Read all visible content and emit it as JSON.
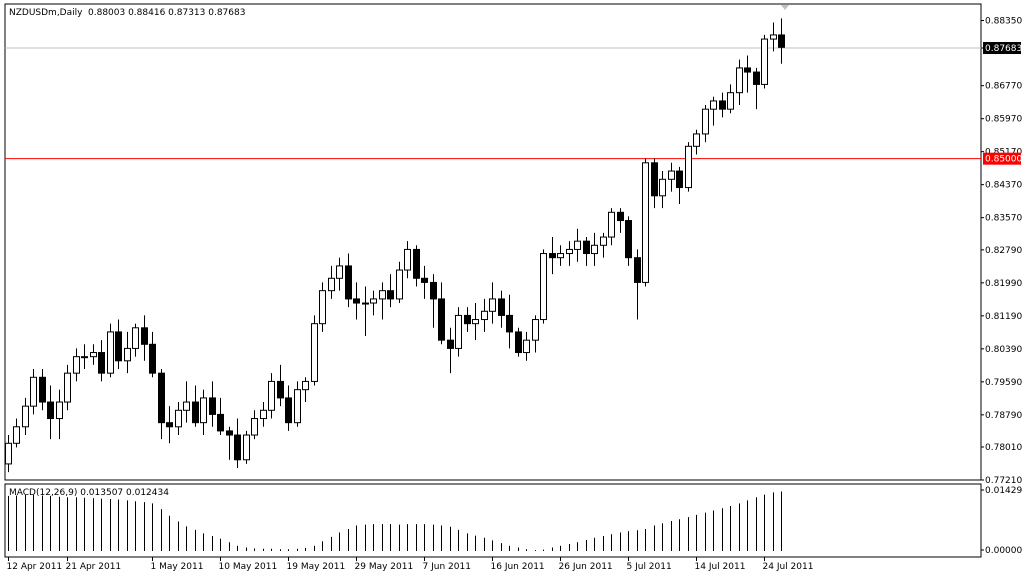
{
  "header": {
    "symbol": "NZDUSDm,Daily",
    "ohlc": "0.88003 0.88416 0.87313 0.87683"
  },
  "macd": {
    "label": "MACD(12,26,9) 0.013507 0.012434",
    "axis_top": "0.014299",
    "axis_bottom": "0.000000"
  },
  "colors": {
    "background": "#ffffff",
    "frame": "#000000",
    "candle_bull": "#ffffff",
    "candle_bear": "#000000",
    "level_line": "#ff0000",
    "current_line": "#c0c0c0"
  },
  "chart_data": {
    "type": "candlestick",
    "symbol": "NZDUSDm",
    "timeframe": "Daily",
    "ylim": [
      0.7721,
      0.8875
    ],
    "price_ticks": [
      "0.88350",
      "0.87683",
      "0.86770",
      "0.85970",
      "0.85170",
      "0.84370",
      "0.83570",
      "0.82790",
      "0.81990",
      "0.81190",
      "0.80390",
      "0.79590",
      "0.78790",
      "0.78010",
      "0.77210"
    ],
    "current_price": "0.87683",
    "level_line": {
      "value": 0.85,
      "label": "0.85000"
    },
    "x_labels": [
      "12 Apr 2011",
      "21 Apr 2011",
      "1 May 2011",
      "10 May 2011",
      "19 May 2011",
      "29 May 2011",
      "7 Jun 2011",
      "16 Jun 2011",
      "26 Jun 2011",
      "5 Jul 2011",
      "14 Jul 2011",
      "24 Jul 2011"
    ],
    "x_label_index": [
      0,
      7,
      17,
      25,
      33,
      41,
      49,
      57,
      65,
      73,
      81,
      89
    ],
    "candles": [
      [
        0.776,
        0.783,
        0.774,
        0.781
      ],
      [
        0.781,
        0.787,
        0.78,
        0.785
      ],
      [
        0.785,
        0.792,
        0.783,
        0.79
      ],
      [
        0.79,
        0.799,
        0.788,
        0.797
      ],
      [
        0.797,
        0.799,
        0.789,
        0.791
      ],
      [
        0.791,
        0.795,
        0.782,
        0.787
      ],
      [
        0.787,
        0.794,
        0.782,
        0.791
      ],
      [
        0.791,
        0.8,
        0.789,
        0.798
      ],
      [
        0.798,
        0.804,
        0.796,
        0.802
      ],
      [
        0.802,
        0.805,
        0.799,
        0.802
      ],
      [
        0.802,
        0.805,
        0.8,
        0.803
      ],
      [
        0.803,
        0.806,
        0.796,
        0.798
      ],
      [
        0.798,
        0.81,
        0.797,
        0.808
      ],
      [
        0.808,
        0.811,
        0.799,
        0.801
      ],
      [
        0.801,
        0.808,
        0.798,
        0.804
      ],
      [
        0.804,
        0.81,
        0.802,
        0.809
      ],
      [
        0.809,
        0.812,
        0.801,
        0.805
      ],
      [
        0.805,
        0.808,
        0.797,
        0.798
      ],
      [
        0.798,
        0.799,
        0.782,
        0.786
      ],
      [
        0.786,
        0.79,
        0.781,
        0.785
      ],
      [
        0.785,
        0.791,
        0.783,
        0.789
      ],
      [
        0.789,
        0.796,
        0.786,
        0.791
      ],
      [
        0.791,
        0.795,
        0.785,
        0.786
      ],
      [
        0.786,
        0.794,
        0.783,
        0.792
      ],
      [
        0.792,
        0.796,
        0.785,
        0.788
      ],
      [
        0.788,
        0.792,
        0.783,
        0.784
      ],
      [
        0.784,
        0.785,
        0.777,
        0.783
      ],
      [
        0.783,
        0.787,
        0.775,
        0.777
      ],
      [
        0.777,
        0.784,
        0.776,
        0.783
      ],
      [
        0.783,
        0.789,
        0.782,
        0.787
      ],
      [
        0.787,
        0.791,
        0.785,
        0.789
      ],
      [
        0.789,
        0.798,
        0.787,
        0.796
      ],
      [
        0.796,
        0.8,
        0.79,
        0.792
      ],
      [
        0.792,
        0.795,
        0.784,
        0.786
      ],
      [
        0.786,
        0.796,
        0.785,
        0.794
      ],
      [
        0.794,
        0.797,
        0.791,
        0.796
      ],
      [
        0.796,
        0.812,
        0.795,
        0.81
      ],
      [
        0.81,
        0.82,
        0.808,
        0.818
      ],
      [
        0.818,
        0.824,
        0.816,
        0.821
      ],
      [
        0.821,
        0.826,
        0.818,
        0.824
      ],
      [
        0.824,
        0.827,
        0.814,
        0.816
      ],
      [
        0.816,
        0.82,
        0.811,
        0.815
      ],
      [
        0.815,
        0.819,
        0.807,
        0.815
      ],
      [
        0.815,
        0.818,
        0.812,
        0.816
      ],
      [
        0.816,
        0.82,
        0.811,
        0.818
      ],
      [
        0.818,
        0.822,
        0.814,
        0.816
      ],
      [
        0.816,
        0.825,
        0.815,
        0.823
      ],
      [
        0.823,
        0.83,
        0.821,
        0.828
      ],
      [
        0.828,
        0.829,
        0.819,
        0.821
      ],
      [
        0.821,
        0.824,
        0.816,
        0.82
      ],
      [
        0.82,
        0.822,
        0.809,
        0.816
      ],
      [
        0.816,
        0.82,
        0.805,
        0.806
      ],
      [
        0.806,
        0.809,
        0.798,
        0.804
      ],
      [
        0.804,
        0.814,
        0.802,
        0.812
      ],
      [
        0.812,
        0.814,
        0.808,
        0.81
      ],
      [
        0.81,
        0.815,
        0.806,
        0.811
      ],
      [
        0.811,
        0.816,
        0.808,
        0.813
      ],
      [
        0.813,
        0.82,
        0.81,
        0.816
      ],
      [
        0.816,
        0.818,
        0.809,
        0.812
      ],
      [
        0.812,
        0.817,
        0.804,
        0.808
      ],
      [
        0.808,
        0.809,
        0.802,
        0.803
      ],
      [
        0.803,
        0.808,
        0.801,
        0.806
      ],
      [
        0.806,
        0.812,
        0.803,
        0.811
      ],
      [
        0.811,
        0.828,
        0.81,
        0.827
      ],
      [
        0.827,
        0.831,
        0.822,
        0.826
      ],
      [
        0.826,
        0.829,
        0.824,
        0.827
      ],
      [
        0.827,
        0.83,
        0.824,
        0.828
      ],
      [
        0.828,
        0.833,
        0.825,
        0.83
      ],
      [
        0.83,
        0.831,
        0.824,
        0.827
      ],
      [
        0.827,
        0.832,
        0.824,
        0.829
      ],
      [
        0.829,
        0.832,
        0.826,
        0.831
      ],
      [
        0.831,
        0.838,
        0.829,
        0.837
      ],
      [
        0.837,
        0.838,
        0.832,
        0.835
      ],
      [
        0.835,
        0.836,
        0.824,
        0.826
      ],
      [
        0.826,
        0.828,
        0.811,
        0.82
      ],
      [
        0.82,
        0.85,
        0.819,
        0.849
      ],
      [
        0.849,
        0.85,
        0.838,
        0.841
      ],
      [
        0.841,
        0.847,
        0.838,
        0.845
      ],
      [
        0.845,
        0.849,
        0.842,
        0.847
      ],
      [
        0.847,
        0.848,
        0.839,
        0.843
      ],
      [
        0.843,
        0.854,
        0.842,
        0.853
      ],
      [
        0.853,
        0.857,
        0.851,
        0.856
      ],
      [
        0.856,
        0.863,
        0.854,
        0.862
      ],
      [
        0.862,
        0.865,
        0.858,
        0.864
      ],
      [
        0.864,
        0.866,
        0.86,
        0.862
      ],
      [
        0.862,
        0.868,
        0.861,
        0.866
      ],
      [
        0.866,
        0.874,
        0.863,
        0.872
      ],
      [
        0.872,
        0.875,
        0.866,
        0.871
      ],
      [
        0.871,
        0.872,
        0.862,
        0.868
      ],
      [
        0.868,
        0.88,
        0.867,
        0.879
      ],
      [
        0.879,
        0.883,
        0.876,
        0.88
      ],
      [
        0.88,
        0.884,
        0.873,
        0.877
      ]
    ],
    "macd_values": [
      0.0125,
      0.0126,
      0.0127,
      0.0127,
      0.0126,
      0.0125,
      0.0123,
      0.0122,
      0.0122,
      0.0121,
      0.012,
      0.0119,
      0.0118,
      0.0117,
      0.0115,
      0.0113,
      0.0111,
      0.0108,
      0.0095,
      0.008,
      0.0067,
      0.0056,
      0.0048,
      0.004,
      0.0034,
      0.0028,
      0.002,
      0.0012,
      0.0008,
      0.0006,
      0.0005,
      0.0005,
      0.0004,
      0.0004,
      0.0005,
      0.0007,
      0.0012,
      0.0022,
      0.0032,
      0.0042,
      0.005,
      0.0058,
      0.006,
      0.0061,
      0.0061,
      0.0061,
      0.006,
      0.0061,
      0.0061,
      0.0061,
      0.006,
      0.0058,
      0.0055,
      0.0048,
      0.004,
      0.0035,
      0.003,
      0.0024,
      0.0018,
      0.0012,
      0.0008,
      0.0004,
      0.0002,
      0.0003,
      0.0008,
      0.0012,
      0.0016,
      0.002,
      0.0025,
      0.003,
      0.0034,
      0.0038,
      0.0042,
      0.0045,
      0.0047,
      0.005,
      0.0058,
      0.0063,
      0.0068,
      0.0072,
      0.0077,
      0.0082,
      0.0087,
      0.0092,
      0.0097,
      0.0102,
      0.0108,
      0.0115,
      0.0122,
      0.0128,
      0.0133,
      0.0135
    ],
    "macd_range": [
      0.0,
      0.014299
    ]
  }
}
